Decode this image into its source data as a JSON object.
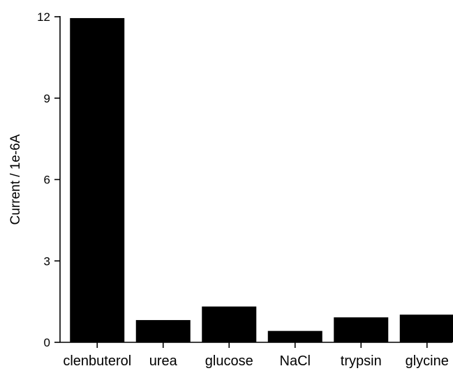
{
  "chart_data": {
    "type": "bar",
    "title": "",
    "xlabel": "",
    "ylabel": "Current / 1e-6A",
    "categories": [
      "clenbuterol",
      "urea",
      "glucose",
      "NaCl",
      "trypsin",
      "glycine"
    ],
    "values": [
      11.95,
      0.82,
      1.32,
      0.42,
      0.92,
      1.02
    ],
    "ylim": [
      0,
      12
    ],
    "yticks": [
      0,
      3,
      6,
      9,
      12
    ],
    "ytick_labels": [
      "0",
      "3",
      "6",
      "9",
      "12"
    ],
    "bar_color": "#000000",
    "grid": false,
    "legend": "none"
  }
}
